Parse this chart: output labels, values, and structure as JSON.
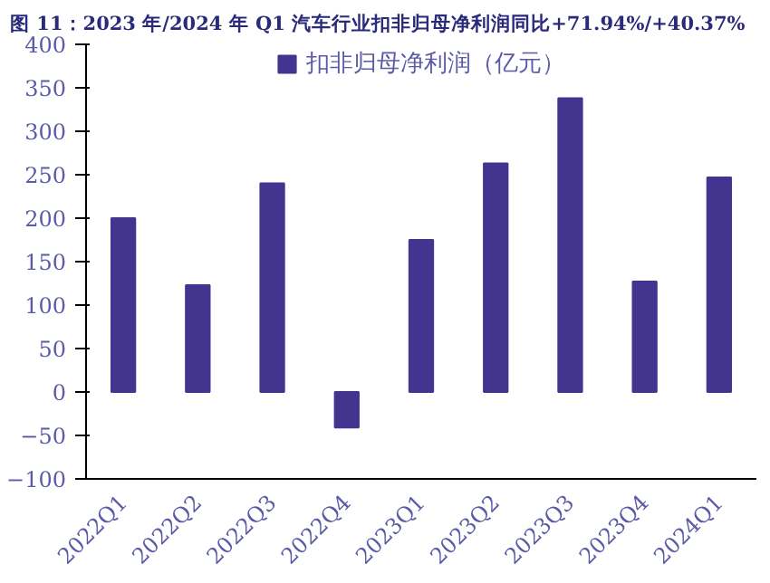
{
  "chart_data": {
    "type": "bar",
    "title": "图 11：2023 年/2024 年 Q1 汽车行业扣非归母净利润同比+71.94%/+40.37%",
    "categories": [
      "2022Q1",
      "2022Q2",
      "2022Q3",
      "2022Q4",
      "2023Q1",
      "2023Q2",
      "2023Q3",
      "2023Q4",
      "2024Q1"
    ],
    "series": [
      {
        "name": "扣非归母净利润（亿元）",
        "color": "#43358f",
        "values": [
          200,
          123,
          240,
          -41,
          175,
          263,
          338,
          127,
          247
        ]
      }
    ],
    "ylim": [
      -100,
      400
    ],
    "yticks": [
      -100,
      -50,
      0,
      50,
      100,
      150,
      200,
      250,
      300,
      350,
      400
    ],
    "grid": false,
    "legend": "top"
  }
}
